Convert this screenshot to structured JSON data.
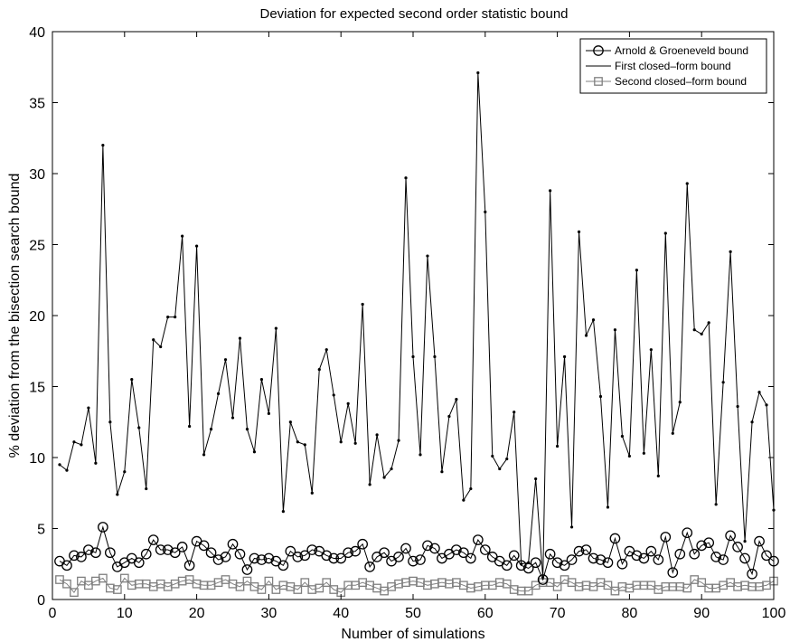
{
  "chart_data": {
    "type": "line",
    "title": "Deviation for expected second order statistic bound",
    "xlabel": "Number of simulations",
    "ylabel": "% deviation from the bisection search bound",
    "xlim": [
      0,
      100
    ],
    "ylim": [
      0,
      40
    ],
    "xticks": [
      0,
      10,
      20,
      30,
      40,
      50,
      60,
      70,
      80,
      90,
      100
    ],
    "yticks": [
      0,
      5,
      10,
      15,
      20,
      25,
      30,
      35,
      40
    ],
    "grid": false,
    "legend_position": "top-right",
    "x": [
      1,
      2,
      3,
      4,
      5,
      6,
      7,
      8,
      9,
      10,
      11,
      12,
      13,
      14,
      15,
      16,
      17,
      18,
      19,
      20,
      21,
      22,
      23,
      24,
      25,
      26,
      27,
      28,
      29,
      30,
      31,
      32,
      33,
      34,
      35,
      36,
      37,
      38,
      39,
      40,
      41,
      42,
      43,
      44,
      45,
      46,
      47,
      48,
      49,
      50,
      51,
      52,
      53,
      54,
      55,
      56,
      57,
      58,
      59,
      60,
      61,
      62,
      63,
      64,
      65,
      66,
      67,
      68,
      69,
      70,
      71,
      72,
      73,
      74,
      75,
      76,
      77,
      78,
      79,
      80,
      81,
      82,
      83,
      84,
      85,
      86,
      87,
      88,
      89,
      90,
      91,
      92,
      93,
      94,
      95,
      96,
      97,
      98,
      99,
      100
    ],
    "series": [
      {
        "name": "Arnold & Groeneveld bound",
        "marker": "circle",
        "color": "#000000",
        "values": [
          2.7,
          2.4,
          3.1,
          3.0,
          3.5,
          3.3,
          5.1,
          3.3,
          2.3,
          2.6,
          2.9,
          2.6,
          3.2,
          4.2,
          3.5,
          3.5,
          3.3,
          3.7,
          2.4,
          4.1,
          3.8,
          3.3,
          2.8,
          3.0,
          3.9,
          3.2,
          2.1,
          2.9,
          2.8,
          2.9,
          2.7,
          2.4,
          3.4,
          3.0,
          3.1,
          3.5,
          3.4,
          3.1,
          2.9,
          2.9,
          3.3,
          3.4,
          3.9,
          2.3,
          3.0,
          3.3,
          2.7,
          3.0,
          3.6,
          2.7,
          2.8,
          3.8,
          3.6,
          2.9,
          3.2,
          3.5,
          3.3,
          2.9,
          4.2,
          3.5,
          3.0,
          2.7,
          2.4,
          3.1,
          2.4,
          2.2,
          2.6,
          1.4,
          3.2,
          2.6,
          2.4,
          2.8,
          3.4,
          3.5,
          2.9,
          2.8,
          2.6,
          4.3,
          2.5,
          3.4,
          3.1,
          2.9,
          3.4,
          2.8,
          4.4,
          1.9,
          3.2,
          4.7,
          3.2,
          3.8,
          4.0,
          3.0,
          2.8,
          4.5,
          3.7,
          2.9,
          1.8,
          4.1,
          3.1,
          2.7
        ]
      },
      {
        "name": "First closed–form bound",
        "marker": "dot",
        "color": "#000000",
        "values": [
          9.5,
          9.1,
          11.1,
          10.9,
          13.5,
          9.6,
          32.0,
          12.5,
          7.4,
          9.0,
          15.5,
          12.1,
          7.8,
          18.3,
          17.8,
          19.9,
          19.9,
          25.6,
          12.2,
          24.9,
          10.2,
          12.0,
          14.5,
          16.9,
          12.8,
          18.4,
          12.0,
          10.4,
          15.5,
          13.1,
          19.1,
          6.2,
          12.5,
          11.1,
          10.9,
          7.5,
          16.2,
          17.6,
          14.4,
          11.1,
          13.8,
          11.0,
          20.8,
          8.1,
          11.6,
          8.6,
          9.2,
          11.2,
          29.7,
          17.1,
          10.2,
          24.2,
          17.1,
          9.0,
          12.9,
          14.1,
          7.0,
          7.8,
          37.1,
          27.3,
          10.1,
          9.2,
          9.9,
          13.2,
          2.5,
          2.6,
          8.5,
          1.5,
          28.8,
          10.8,
          17.1,
          5.1,
          25.9,
          18.6,
          19.7,
          14.3,
          6.5,
          19.0,
          11.5,
          10.1,
          23.2,
          10.3,
          17.6,
          8.7,
          25.8,
          11.7,
          13.9,
          29.3,
          19.0,
          18.7,
          19.5,
          6.7,
          15.3,
          24.5,
          13.6,
          4.1,
          12.5,
          14.6,
          13.7,
          6.3
        ]
      },
      {
        "name": "Second closed–form bound",
        "marker": "square",
        "color": "#7f7f7f",
        "values": [
          1.4,
          1.1,
          0.5,
          1.3,
          1.0,
          1.3,
          1.5,
          0.8,
          0.7,
          1.5,
          1.0,
          1.1,
          1.1,
          0.9,
          1.1,
          0.9,
          1.1,
          1.3,
          1.4,
          1.1,
          1.0,
          1.0,
          1.2,
          1.4,
          1.1,
          0.9,
          1.3,
          0.9,
          0.7,
          1.3,
          0.7,
          1.0,
          0.9,
          0.7,
          1.2,
          0.7,
          0.8,
          1.2,
          0.7,
          0.5,
          1.0,
          1.0,
          1.2,
          1.0,
          0.8,
          0.6,
          0.9,
          1.1,
          1.2,
          1.3,
          1.2,
          1.0,
          1.1,
          1.2,
          1.1,
          1.2,
          1.0,
          0.8,
          0.9,
          1.0,
          1.0,
          1.2,
          1.1,
          0.7,
          0.6,
          0.6,
          1.0,
          1.2,
          1.2,
          0.9,
          1.4,
          1.2,
          0.9,
          1.0,
          0.9,
          1.2,
          1.0,
          0.6,
          0.9,
          0.8,
          1.0,
          1.0,
          1.0,
          0.7,
          0.9,
          0.9,
          0.9,
          0.8,
          1.4,
          1.2,
          0.8,
          0.8,
          1.0,
          1.2,
          0.9,
          1.0,
          0.9,
          0.9,
          1.0,
          1.3
        ]
      }
    ]
  }
}
